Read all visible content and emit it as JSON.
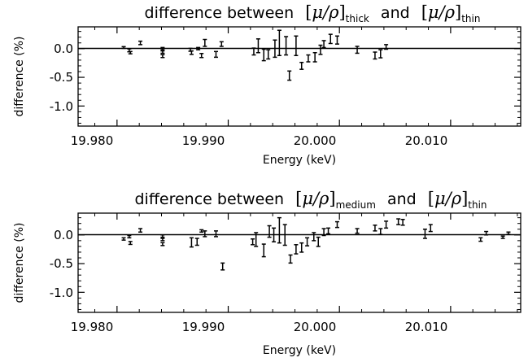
{
  "chart_data": [
    {
      "type": "scatter",
      "title": {
        "lead": "difference between",
        "symbol": "μ/ρ",
        "sub_a": "thick",
        "conj": "and",
        "sub_b": "thin"
      },
      "xlabel": "Energy (keV)",
      "ylabel": "difference (%)",
      "xlim": [
        19.9765,
        20.0163
      ],
      "ylim": [
        -1.35,
        0.38
      ],
      "xticks": [
        19.98,
        19.99,
        20.0,
        20.01
      ],
      "xtick_labels": [
        "19.980",
        "19.990",
        "20.000",
        "20.010"
      ],
      "yticks": [
        0.0,
        -0.5,
        -1.0
      ],
      "ytick_labels": [
        "0.0",
        "-0.5",
        "-1.0"
      ],
      "reference_line_y": 0.0,
      "grid": false,
      "points": [
        {
          "x": 19.9806,
          "y": 0.02,
          "err": 0.015
        },
        {
          "x": 19.9811,
          "y": -0.03,
          "err": 0.025
        },
        {
          "x": 19.9812,
          "y": -0.07,
          "err": 0.02
        },
        {
          "x": 19.9821,
          "y": 0.1,
          "err": 0.03
        },
        {
          "x": 19.9841,
          "y": 0.0,
          "err": 0.02
        },
        {
          "x": 19.9841,
          "y": -0.06,
          "err": 0.02
        },
        {
          "x": 19.9841,
          "y": -0.13,
          "err": 0.025
        },
        {
          "x": 19.9866,
          "y": -0.02,
          "err": 0.025
        },
        {
          "x": 19.9867,
          "y": -0.07,
          "err": 0.03
        },
        {
          "x": 19.9873,
          "y": 0.0,
          "err": 0.02
        },
        {
          "x": 19.9876,
          "y": -0.12,
          "err": 0.035
        },
        {
          "x": 19.9879,
          "y": 0.1,
          "err": 0.06
        },
        {
          "x": 19.9889,
          "y": -0.1,
          "err": 0.05
        },
        {
          "x": 19.9894,
          "y": 0.08,
          "err": 0.04
        },
        {
          "x": 19.9923,
          "y": -0.05,
          "err": 0.06
        },
        {
          "x": 19.9927,
          "y": 0.05,
          "err": 0.12
        },
        {
          "x": 19.9932,
          "y": -0.11,
          "err": 0.1
        },
        {
          "x": 19.9936,
          "y": -0.1,
          "err": 0.08
        },
        {
          "x": 19.9942,
          "y": 0.0,
          "err": 0.15
        },
        {
          "x": 19.9946,
          "y": 0.1,
          "err": 0.22
        },
        {
          "x": 19.9952,
          "y": 0.05,
          "err": 0.16
        },
        {
          "x": 19.9955,
          "y": -0.47,
          "err": 0.08
        },
        {
          "x": 19.9961,
          "y": 0.05,
          "err": 0.17
        },
        {
          "x": 19.9966,
          "y": -0.3,
          "err": 0.06
        },
        {
          "x": 19.9972,
          "y": -0.17,
          "err": 0.06
        },
        {
          "x": 19.9978,
          "y": -0.15,
          "err": 0.08
        },
        {
          "x": 19.9983,
          "y": -0.02,
          "err": 0.08
        },
        {
          "x": 19.9986,
          "y": 0.08,
          "err": 0.06
        },
        {
          "x": 19.9992,
          "y": 0.17,
          "err": 0.08
        },
        {
          "x": 19.9998,
          "y": 0.15,
          "err": 0.07
        },
        {
          "x": 20.0016,
          "y": -0.02,
          "err": 0.06
        },
        {
          "x": 20.0032,
          "y": -0.12,
          "err": 0.06
        },
        {
          "x": 20.0037,
          "y": -0.09,
          "err": 0.07
        },
        {
          "x": 20.0042,
          "y": 0.03,
          "err": 0.04
        }
      ]
    },
    {
      "type": "scatter",
      "title": {
        "lead": "difference between",
        "symbol": "μ/ρ",
        "sub_a": "medium",
        "conj": "and",
        "sub_b": "thin"
      },
      "xlabel": "Energy (keV)",
      "ylabel": "difference (%)",
      "xlim": [
        19.9765,
        20.0163
      ],
      "ylim": [
        -1.35,
        0.38
      ],
      "xticks": [
        19.98,
        19.99,
        20.0,
        20.01
      ],
      "xtick_labels": [
        "19.980",
        "19.990",
        "20.000",
        "20.010"
      ],
      "yticks": [
        0.0,
        -0.5,
        -1.0
      ],
      "ytick_labels": [
        "0.0",
        "-0.5",
        "-1.0"
      ],
      "reference_line_y": 0.0,
      "grid": false,
      "points": [
        {
          "x": 19.9806,
          "y": -0.07,
          "err": 0.02
        },
        {
          "x": 19.9811,
          "y": -0.03,
          "err": 0.02
        },
        {
          "x": 19.9812,
          "y": -0.14,
          "err": 0.025
        },
        {
          "x": 19.9821,
          "y": 0.08,
          "err": 0.03
        },
        {
          "x": 19.9841,
          "y": -0.02,
          "err": 0.02
        },
        {
          "x": 19.9841,
          "y": -0.08,
          "err": 0.02
        },
        {
          "x": 19.9841,
          "y": -0.16,
          "err": 0.025
        },
        {
          "x": 19.9867,
          "y": -0.13,
          "err": 0.08
        },
        {
          "x": 19.9872,
          "y": -0.12,
          "err": 0.06
        },
        {
          "x": 19.9876,
          "y": 0.07,
          "err": 0.02
        },
        {
          "x": 19.9879,
          "y": 0.02,
          "err": 0.05
        },
        {
          "x": 19.9889,
          "y": 0.02,
          "err": 0.05
        },
        {
          "x": 19.9895,
          "y": -0.55,
          "err": 0.06
        },
        {
          "x": 19.9922,
          "y": -0.12,
          "err": 0.05
        },
        {
          "x": 19.9925,
          "y": -0.08,
          "err": 0.12
        },
        {
          "x": 19.9932,
          "y": -0.27,
          "err": 0.11
        },
        {
          "x": 19.9937,
          "y": 0.06,
          "err": 0.1
        },
        {
          "x": 19.9941,
          "y": 0.0,
          "err": 0.12
        },
        {
          "x": 19.9946,
          "y": 0.08,
          "err": 0.22
        },
        {
          "x": 19.9951,
          "y": 0.0,
          "err": 0.18
        },
        {
          "x": 19.9956,
          "y": -0.42,
          "err": 0.07
        },
        {
          "x": 19.9961,
          "y": -0.25,
          "err": 0.08
        },
        {
          "x": 19.9966,
          "y": -0.22,
          "err": 0.08
        },
        {
          "x": 19.9971,
          "y": -0.12,
          "err": 0.07
        },
        {
          "x": 19.9977,
          "y": -0.03,
          "err": 0.07
        },
        {
          "x": 19.9981,
          "y": -0.12,
          "err": 0.08
        },
        {
          "x": 19.9986,
          "y": 0.05,
          "err": 0.06
        },
        {
          "x": 19.999,
          "y": 0.07,
          "err": 0.05
        },
        {
          "x": 19.9998,
          "y": 0.18,
          "err": 0.05
        },
        {
          "x": 20.0016,
          "y": 0.07,
          "err": 0.04
        },
        {
          "x": 20.0032,
          "y": 0.12,
          "err": 0.05
        },
        {
          "x": 20.0037,
          "y": 0.06,
          "err": 0.05
        },
        {
          "x": 20.0042,
          "y": 0.18,
          "err": 0.06
        },
        {
          "x": 20.0053,
          "y": 0.23,
          "err": 0.05
        },
        {
          "x": 20.0057,
          "y": 0.22,
          "err": 0.05
        },
        {
          "x": 20.0077,
          "y": 0.02,
          "err": 0.08
        },
        {
          "x": 20.0082,
          "y": 0.12,
          "err": 0.06
        },
        {
          "x": 20.0127,
          "y": -0.08,
          "err": 0.03
        },
        {
          "x": 20.0132,
          "y": 0.03,
          "err": 0.03
        },
        {
          "x": 20.0147,
          "y": -0.04,
          "err": 0.02
        },
        {
          "x": 20.0152,
          "y": 0.03,
          "err": 0.02
        }
      ]
    }
  ]
}
